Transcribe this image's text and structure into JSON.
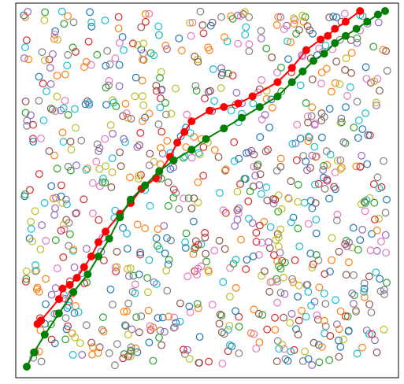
{
  "chart_data": {
    "type": "scatter",
    "title": "",
    "xlabel": "",
    "ylabel": "",
    "xlim": [
      0,
      1
    ],
    "ylim": [
      0,
      1
    ],
    "grid": false,
    "axes_visible": false,
    "background": {
      "marker": "hollow-circle",
      "colors": [
        "#1f77b4",
        "#ff7f0e",
        "#2ca02c",
        "#d62728",
        "#9467bd",
        "#8c564b",
        "#e377c2",
        "#7f7f7f",
        "#bcbd22",
        "#17becf"
      ],
      "approx_count": 900
    },
    "series": [
      {
        "color": "#ff0000",
        "marker": "filled-circle",
        "points": [
          [
            0.03,
            0.12
          ],
          [
            0.04,
            0.13
          ],
          [
            0.09,
            0.19
          ],
          [
            0.1,
            0.22
          ],
          [
            0.12,
            0.23
          ],
          [
            0.14,
            0.25
          ],
          [
            0.16,
            0.28
          ],
          [
            0.18,
            0.31
          ],
          [
            0.2,
            0.35
          ],
          [
            0.22,
            0.38
          ],
          [
            0.26,
            0.43
          ],
          [
            0.29,
            0.46
          ],
          [
            0.32,
            0.5
          ],
          [
            0.36,
            0.53
          ],
          [
            0.4,
            0.59
          ],
          [
            0.42,
            0.63
          ],
          [
            0.44,
            0.66
          ],
          [
            0.46,
            0.69
          ],
          [
            0.51,
            0.72
          ],
          [
            0.55,
            0.73
          ],
          [
            0.59,
            0.74
          ],
          [
            0.63,
            0.76
          ],
          [
            0.7,
            0.8
          ],
          [
            0.74,
            0.84
          ],
          [
            0.78,
            0.89
          ],
          [
            0.82,
            0.92
          ],
          [
            0.84,
            0.93
          ],
          [
            0.86,
            0.95
          ],
          [
            0.89,
            0.97
          ],
          [
            0.93,
            1.0
          ]
        ]
      },
      {
        "color": "#008000",
        "marker": "filled-circle",
        "points": [
          [
            0.0,
            0.0
          ],
          [
            0.02,
            0.04
          ],
          [
            0.05,
            0.09
          ],
          [
            0.09,
            0.15
          ],
          [
            0.13,
            0.21
          ],
          [
            0.17,
            0.26
          ],
          [
            0.2,
            0.31
          ],
          [
            0.23,
            0.36
          ],
          [
            0.26,
            0.42
          ],
          [
            0.29,
            0.47
          ],
          [
            0.33,
            0.51
          ],
          [
            0.37,
            0.55
          ],
          [
            0.41,
            0.58
          ],
          [
            0.46,
            0.61
          ],
          [
            0.5,
            0.64
          ],
          [
            0.55,
            0.67
          ],
          [
            0.6,
            0.7
          ],
          [
            0.65,
            0.73
          ],
          [
            0.7,
            0.76
          ],
          [
            0.74,
            0.8
          ],
          [
            0.77,
            0.83
          ],
          [
            0.8,
            0.86
          ],
          [
            0.83,
            0.88
          ],
          [
            0.86,
            0.91
          ],
          [
            0.89,
            0.93
          ],
          [
            0.92,
            0.95
          ],
          [
            0.95,
            0.97
          ],
          [
            0.98,
            0.99
          ],
          [
            1.0,
            1.0
          ]
        ]
      }
    ]
  }
}
